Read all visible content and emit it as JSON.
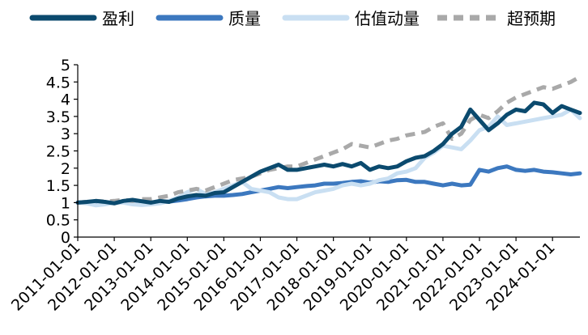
{
  "chart_data": {
    "type": "line",
    "title": "",
    "xlabel": "",
    "ylabel": "",
    "ylim": [
      0,
      5
    ],
    "yticks": [
      "0",
      "0.5",
      "1",
      "1.5",
      "2",
      "2.5",
      "3",
      "3.5",
      "4",
      "4.5",
      "5"
    ],
    "xticks": [
      "2011-01-01",
      "2012-01-01",
      "2013-01-01",
      "2014-01-01",
      "2015-01-01",
      "2016-01-01",
      "2017-01-01",
      "2018-01-01",
      "2019-01-01",
      "2020-01-01",
      "2021-01-01",
      "2022-01-01",
      "2023-01-01",
      "2024-01-01"
    ],
    "grid": false,
    "legend_position": "top",
    "x": [
      2011.0,
      2011.25,
      2011.5,
      2011.75,
      2012.0,
      2012.25,
      2012.5,
      2012.75,
      2013.0,
      2013.25,
      2013.5,
      2013.75,
      2014.0,
      2014.25,
      2014.5,
      2014.75,
      2015.0,
      2015.25,
      2015.5,
      2015.75,
      2016.0,
      2016.25,
      2016.5,
      2016.75,
      2017.0,
      2017.25,
      2017.5,
      2017.75,
      2018.0,
      2018.25,
      2018.5,
      2018.75,
      2019.0,
      2019.25,
      2019.5,
      2019.75,
      2020.0,
      2020.25,
      2020.5,
      2020.75,
      2021.0,
      2021.25,
      2021.5,
      2021.75,
      2022.0,
      2022.25,
      2022.5,
      2022.75,
      2023.0,
      2023.25,
      2023.5,
      2023.75,
      2024.0,
      2024.25,
      2024.5,
      2024.75
    ],
    "series": [
      {
        "name": "盈利",
        "color": "#0b4a6e",
        "dash": "solid",
        "values": [
          1.0,
          1.02,
          1.05,
          1.02,
          0.98,
          1.05,
          1.08,
          1.04,
          1.0,
          1.05,
          1.02,
          1.12,
          1.18,
          1.22,
          1.2,
          1.28,
          1.3,
          1.45,
          1.6,
          1.75,
          1.9,
          2.0,
          2.1,
          1.95,
          1.95,
          2.0,
          2.05,
          2.1,
          2.05,
          2.12,
          2.05,
          2.15,
          1.95,
          2.05,
          2.0,
          2.05,
          2.2,
          2.3,
          2.35,
          2.5,
          2.7,
          3.0,
          3.2,
          3.7,
          3.4,
          3.1,
          3.3,
          3.55,
          3.7,
          3.65,
          3.9,
          3.85,
          3.6,
          3.8,
          3.7,
          3.6
        ]
      },
      {
        "name": "质量",
        "color": "#3c78bf",
        "dash": "solid",
        "values": [
          1.0,
          1.01,
          1.02,
          1.0,
          1.0,
          1.02,
          1.01,
          1.03,
          1.0,
          1.02,
          1.03,
          1.06,
          1.1,
          1.15,
          1.18,
          1.2,
          1.2,
          1.22,
          1.25,
          1.3,
          1.35,
          1.4,
          1.45,
          1.42,
          1.45,
          1.48,
          1.5,
          1.55,
          1.55,
          1.57,
          1.6,
          1.62,
          1.58,
          1.62,
          1.6,
          1.65,
          1.66,
          1.6,
          1.6,
          1.55,
          1.5,
          1.55,
          1.5,
          1.52,
          1.95,
          1.9,
          2.0,
          2.05,
          1.95,
          1.92,
          1.95,
          1.9,
          1.88,
          1.85,
          1.82,
          1.85
        ]
      },
      {
        "name": "估值动量",
        "color": "#c9dff2",
        "dash": "solid",
        "values": [
          1.0,
          0.98,
          0.92,
          0.95,
          1.0,
          1.0,
          0.95,
          0.93,
          0.95,
          0.98,
          1.05,
          1.15,
          1.3,
          1.4,
          1.25,
          1.3,
          1.4,
          1.5,
          1.6,
          1.4,
          1.35,
          1.3,
          1.15,
          1.1,
          1.1,
          1.2,
          1.3,
          1.35,
          1.4,
          1.5,
          1.55,
          1.5,
          1.55,
          1.65,
          1.7,
          1.85,
          1.9,
          2.0,
          2.3,
          2.45,
          2.65,
          2.6,
          2.55,
          2.8,
          3.1,
          3.2,
          3.5,
          3.25,
          3.3,
          3.35,
          3.4,
          3.45,
          3.5,
          3.55,
          3.7,
          3.45
        ]
      },
      {
        "name": "超预期",
        "color": "#a9a9a9",
        "dash": "dashed",
        "values": [
          1.0,
          1.02,
          1.05,
          1.03,
          1.05,
          1.08,
          1.05,
          1.1,
          1.1,
          1.15,
          1.2,
          1.3,
          1.35,
          1.4,
          1.35,
          1.45,
          1.55,
          1.65,
          1.7,
          1.75,
          1.85,
          1.95,
          2.0,
          2.05,
          2.05,
          2.15,
          2.25,
          2.35,
          2.45,
          2.55,
          2.7,
          2.65,
          2.6,
          2.7,
          2.8,
          2.85,
          2.95,
          3.0,
          3.05,
          3.2,
          3.3,
          2.85,
          3.0,
          3.4,
          3.55,
          3.45,
          3.65,
          3.9,
          4.05,
          4.15,
          4.25,
          4.35,
          4.3,
          4.4,
          4.5,
          4.65
        ]
      }
    ]
  }
}
